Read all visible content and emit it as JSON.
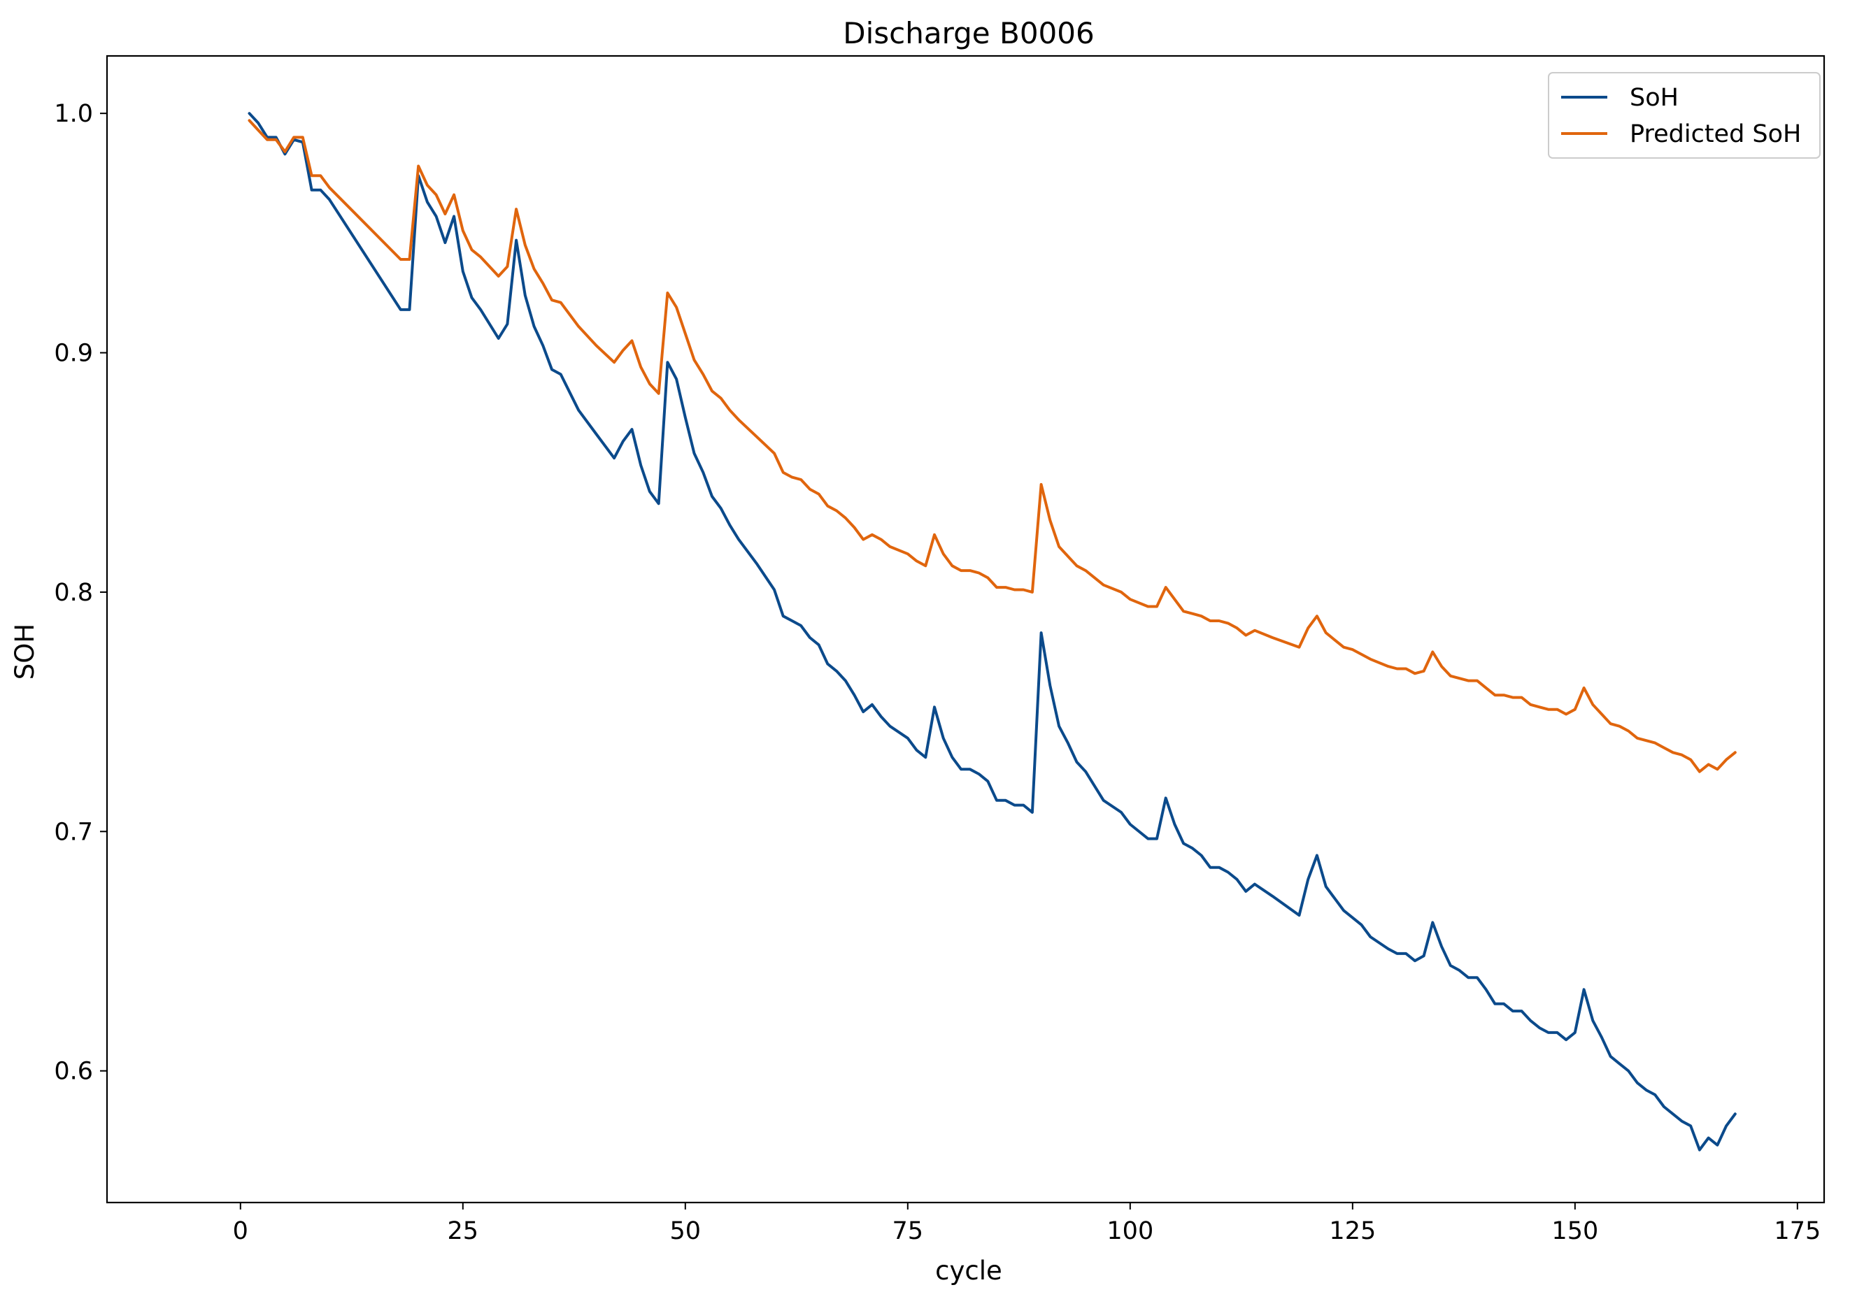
{
  "chart_data": {
    "type": "line",
    "title": "Discharge B0006",
    "xlabel": "cycle",
    "ylabel": "SOH",
    "xlim": [
      -15,
      178
    ],
    "ylim": [
      0.545,
      1.024
    ],
    "xticks": [
      0,
      25,
      50,
      75,
      100,
      125,
      150,
      175
    ],
    "yticks": [
      0.6,
      0.7,
      0.8,
      0.9,
      1.0
    ],
    "xtick_labels": [
      "0",
      "25",
      "50",
      "75",
      "100",
      "125",
      "150",
      "175"
    ],
    "ytick_labels": [
      "0.6",
      "0.7",
      "0.8",
      "0.9",
      "1.0"
    ],
    "grid": false,
    "legend_position": "top-right",
    "series": [
      {
        "name": "SoH",
        "color": "#0b4a8b",
        "points": [
          [
            1,
            1.0
          ],
          [
            2,
            0.996
          ],
          [
            3,
            0.99
          ],
          [
            4,
            0.99
          ],
          [
            5,
            0.983
          ],
          [
            6,
            0.989
          ],
          [
            7,
            0.988
          ],
          [
            8,
            0.968
          ],
          [
            9,
            0.968
          ],
          [
            10,
            0.964
          ],
          [
            18,
            0.918
          ],
          [
            19,
            0.918
          ],
          [
            20,
            0.974
          ],
          [
            21,
            0.963
          ],
          [
            22,
            0.957
          ],
          [
            23,
            0.946
          ],
          [
            24,
            0.957
          ],
          [
            25,
            0.934
          ],
          [
            26,
            0.923
          ],
          [
            27,
            0.918
          ],
          [
            29,
            0.906
          ],
          [
            30,
            0.912
          ],
          [
            31,
            0.947
          ],
          [
            32,
            0.924
          ],
          [
            33,
            0.911
          ],
          [
            34,
            0.903
          ],
          [
            35,
            0.893
          ],
          [
            36,
            0.891
          ],
          [
            38,
            0.876
          ],
          [
            40,
            0.866
          ],
          [
            42,
            0.856
          ],
          [
            43,
            0.863
          ],
          [
            44,
            0.868
          ],
          [
            45,
            0.853
          ],
          [
            46,
            0.842
          ],
          [
            47,
            0.837
          ],
          [
            48,
            0.896
          ],
          [
            49,
            0.889
          ],
          [
            50,
            0.873
          ],
          [
            51,
            0.858
          ],
          [
            52,
            0.85
          ],
          [
            53,
            0.84
          ],
          [
            54,
            0.835
          ],
          [
            55,
            0.828
          ],
          [
            56,
            0.822
          ],
          [
            58,
            0.812
          ],
          [
            60,
            0.801
          ],
          [
            61,
            0.79
          ],
          [
            62,
            0.788
          ],
          [
            63,
            0.786
          ],
          [
            64,
            0.781
          ],
          [
            65,
            0.778
          ],
          [
            66,
            0.77
          ],
          [
            67,
            0.767
          ],
          [
            68,
            0.763
          ],
          [
            69,
            0.757
          ],
          [
            70,
            0.75
          ],
          [
            71,
            0.753
          ],
          [
            72,
            0.748
          ],
          [
            73,
            0.744
          ],
          [
            75,
            0.739
          ],
          [
            76,
            0.734
          ],
          [
            77,
            0.731
          ],
          [
            78,
            0.752
          ],
          [
            79,
            0.739
          ],
          [
            80,
            0.731
          ],
          [
            81,
            0.726
          ],
          [
            82,
            0.726
          ],
          [
            83,
            0.724
          ],
          [
            84,
            0.721
          ],
          [
            85,
            0.713
          ],
          [
            86,
            0.713
          ],
          [
            87,
            0.711
          ],
          [
            88,
            0.711
          ],
          [
            89,
            0.708
          ],
          [
            90,
            0.783
          ],
          [
            91,
            0.761
          ],
          [
            92,
            0.744
          ],
          [
            93,
            0.737
          ],
          [
            94,
            0.729
          ],
          [
            95,
            0.725
          ],
          [
            97,
            0.713
          ],
          [
            99,
            0.708
          ],
          [
            100,
            0.703
          ],
          [
            102,
            0.697
          ],
          [
            103,
            0.697
          ],
          [
            104,
            0.714
          ],
          [
            105,
            0.703
          ],
          [
            106,
            0.695
          ],
          [
            107,
            0.693
          ],
          [
            108,
            0.69
          ],
          [
            109,
            0.685
          ],
          [
            110,
            0.685
          ],
          [
            111,
            0.683
          ],
          [
            112,
            0.68
          ],
          [
            113,
            0.675
          ],
          [
            114,
            0.678
          ],
          [
            116,
            0.673
          ],
          [
            119,
            0.665
          ],
          [
            120,
            0.68
          ],
          [
            121,
            0.69
          ],
          [
            122,
            0.677
          ],
          [
            123,
            0.672
          ],
          [
            124,
            0.667
          ],
          [
            125,
            0.664
          ],
          [
            126,
            0.661
          ],
          [
            127,
            0.656
          ],
          [
            129,
            0.651
          ],
          [
            130,
            0.649
          ],
          [
            131,
            0.649
          ],
          [
            132,
            0.646
          ],
          [
            133,
            0.648
          ],
          [
            134,
            0.662
          ],
          [
            135,
            0.652
          ],
          [
            136,
            0.644
          ],
          [
            137,
            0.642
          ],
          [
            138,
            0.639
          ],
          [
            139,
            0.639
          ],
          [
            140,
            0.634
          ],
          [
            141,
            0.628
          ],
          [
            142,
            0.628
          ],
          [
            143,
            0.625
          ],
          [
            144,
            0.625
          ],
          [
            145,
            0.621
          ],
          [
            146,
            0.618
          ],
          [
            147,
            0.616
          ],
          [
            148,
            0.616
          ],
          [
            149,
            0.613
          ],
          [
            150,
            0.616
          ],
          [
            151,
            0.634
          ],
          [
            152,
            0.621
          ],
          [
            153,
            0.614
          ],
          [
            154,
            0.606
          ],
          [
            155,
            0.603
          ],
          [
            156,
            0.6
          ],
          [
            157,
            0.595
          ],
          [
            158,
            0.592
          ],
          [
            159,
            0.59
          ],
          [
            160,
            0.585
          ],
          [
            161,
            0.582
          ],
          [
            162,
            0.579
          ],
          [
            163,
            0.577
          ],
          [
            164,
            0.567
          ],
          [
            165,
            0.572
          ],
          [
            166,
            0.569
          ],
          [
            167,
            0.577
          ],
          [
            168,
            0.582
          ]
        ]
      },
      {
        "name": "Predicted SoH",
        "color": "#e0650d",
        "points": [
          [
            1,
            0.997
          ],
          [
            2,
            0.993
          ],
          [
            3,
            0.989
          ],
          [
            4,
            0.989
          ],
          [
            5,
            0.984
          ],
          [
            6,
            0.99
          ],
          [
            7,
            0.99
          ],
          [
            8,
            0.974
          ],
          [
            9,
            0.974
          ],
          [
            10,
            0.969
          ],
          [
            18,
            0.939
          ],
          [
            19,
            0.939
          ],
          [
            20,
            0.978
          ],
          [
            21,
            0.97
          ],
          [
            22,
            0.966
          ],
          [
            23,
            0.958
          ],
          [
            24,
            0.966
          ],
          [
            25,
            0.951
          ],
          [
            26,
            0.943
          ],
          [
            27,
            0.94
          ],
          [
            29,
            0.932
          ],
          [
            30,
            0.936
          ],
          [
            31,
            0.96
          ],
          [
            32,
            0.945
          ],
          [
            33,
            0.935
          ],
          [
            34,
            0.929
          ],
          [
            35,
            0.922
          ],
          [
            36,
            0.921
          ],
          [
            38,
            0.911
          ],
          [
            40,
            0.903
          ],
          [
            42,
            0.896
          ],
          [
            43,
            0.901
          ],
          [
            44,
            0.905
          ],
          [
            45,
            0.894
          ],
          [
            46,
            0.887
          ],
          [
            47,
            0.883
          ],
          [
            48,
            0.925
          ],
          [
            49,
            0.919
          ],
          [
            50,
            0.908
          ],
          [
            51,
            0.897
          ],
          [
            52,
            0.891
          ],
          [
            53,
            0.884
          ],
          [
            54,
            0.881
          ],
          [
            55,
            0.876
          ],
          [
            56,
            0.872
          ],
          [
            58,
            0.865
          ],
          [
            60,
            0.858
          ],
          [
            61,
            0.85
          ],
          [
            62,
            0.848
          ],
          [
            63,
            0.847
          ],
          [
            64,
            0.843
          ],
          [
            65,
            0.841
          ],
          [
            66,
            0.836
          ],
          [
            67,
            0.834
          ],
          [
            68,
            0.831
          ],
          [
            69,
            0.827
          ],
          [
            70,
            0.822
          ],
          [
            71,
            0.824
          ],
          [
            72,
            0.822
          ],
          [
            73,
            0.819
          ],
          [
            75,
            0.816
          ],
          [
            76,
            0.813
          ],
          [
            77,
            0.811
          ],
          [
            78,
            0.824
          ],
          [
            79,
            0.816
          ],
          [
            80,
            0.811
          ],
          [
            81,
            0.809
          ],
          [
            82,
            0.809
          ],
          [
            83,
            0.808
          ],
          [
            84,
            0.806
          ],
          [
            85,
            0.802
          ],
          [
            86,
            0.802
          ],
          [
            87,
            0.801
          ],
          [
            88,
            0.801
          ],
          [
            89,
            0.8
          ],
          [
            90,
            0.845
          ],
          [
            91,
            0.83
          ],
          [
            92,
            0.819
          ],
          [
            93,
            0.815
          ],
          [
            94,
            0.811
          ],
          [
            95,
            0.809
          ],
          [
            97,
            0.803
          ],
          [
            99,
            0.8
          ],
          [
            100,
            0.797
          ],
          [
            102,
            0.794
          ],
          [
            103,
            0.794
          ],
          [
            104,
            0.802
          ],
          [
            105,
            0.797
          ],
          [
            106,
            0.792
          ],
          [
            107,
            0.791
          ],
          [
            108,
            0.79
          ],
          [
            109,
            0.788
          ],
          [
            110,
            0.788
          ],
          [
            111,
            0.787
          ],
          [
            112,
            0.785
          ],
          [
            113,
            0.782
          ],
          [
            114,
            0.784
          ],
          [
            116,
            0.781
          ],
          [
            119,
            0.777
          ],
          [
            120,
            0.785
          ],
          [
            121,
            0.79
          ],
          [
            122,
            0.783
          ],
          [
            123,
            0.78
          ],
          [
            124,
            0.777
          ],
          [
            125,
            0.776
          ],
          [
            126,
            0.774
          ],
          [
            127,
            0.772
          ],
          [
            129,
            0.769
          ],
          [
            130,
            0.768
          ],
          [
            131,
            0.768
          ],
          [
            132,
            0.766
          ],
          [
            133,
            0.767
          ],
          [
            134,
            0.775
          ],
          [
            135,
            0.769
          ],
          [
            136,
            0.765
          ],
          [
            137,
            0.764
          ],
          [
            138,
            0.763
          ],
          [
            139,
            0.763
          ],
          [
            140,
            0.76
          ],
          [
            141,
            0.757
          ],
          [
            142,
            0.757
          ],
          [
            143,
            0.756
          ],
          [
            144,
            0.756
          ],
          [
            145,
            0.753
          ],
          [
            146,
            0.752
          ],
          [
            147,
            0.751
          ],
          [
            148,
            0.751
          ],
          [
            149,
            0.749
          ],
          [
            150,
            0.751
          ],
          [
            151,
            0.76
          ],
          [
            152,
            0.753
          ],
          [
            153,
            0.749
          ],
          [
            154,
            0.745
          ],
          [
            155,
            0.744
          ],
          [
            156,
            0.742
          ],
          [
            157,
            0.739
          ],
          [
            158,
            0.738
          ],
          [
            159,
            0.737
          ],
          [
            160,
            0.735
          ],
          [
            161,
            0.733
          ],
          [
            162,
            0.732
          ],
          [
            163,
            0.73
          ],
          [
            164,
            0.725
          ],
          [
            165,
            0.728
          ],
          [
            166,
            0.726
          ],
          [
            167,
            0.73
          ],
          [
            168,
            0.733
          ]
        ]
      }
    ]
  }
}
